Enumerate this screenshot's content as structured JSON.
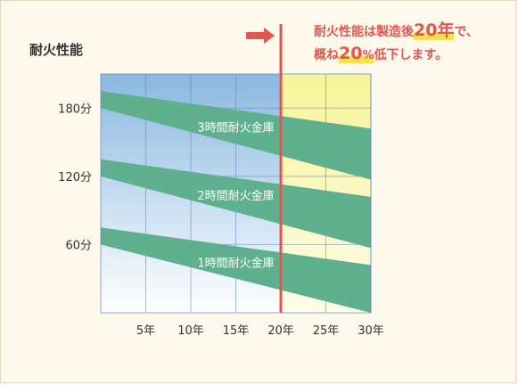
{
  "chart_data": {
    "type": "area",
    "ylabel": "耐火性能",
    "xlim": [
      0,
      30
    ],
    "ylim": [
      0,
      210
    ],
    "x_ticks": [
      {
        "value": 5,
        "label": "5年"
      },
      {
        "value": 10,
        "label": "10年"
      },
      {
        "value": 15,
        "label": "15年"
      },
      {
        "value": 20,
        "label": "20年"
      },
      {
        "value": 25,
        "label": "25年"
      },
      {
        "value": 30,
        "label": "30年"
      }
    ],
    "y_ticks": [
      {
        "value": 60,
        "label": "60分"
      },
      {
        "value": 120,
        "label": "120分"
      },
      {
        "value": 180,
        "label": "180分"
      }
    ],
    "series": [
      {
        "name": "3時間耐火金庫",
        "x": [
          0,
          30
        ],
        "upper": [
          195,
          162
        ],
        "lower": [
          180,
          117
        ]
      },
      {
        "name": "2時間耐火金庫",
        "x": [
          0,
          30
        ],
        "upper": [
          135,
          102
        ],
        "lower": [
          120,
          57
        ]
      },
      {
        "name": "1時間耐火金庫",
        "x": [
          0,
          30
        ],
        "upper": [
          75,
          42
        ],
        "lower": [
          60,
          0
        ]
      }
    ],
    "marker_x": 20,
    "annotation": {
      "line1_a": "耐火性能は製造後",
      "line1_b": "20年",
      "line1_c": "で、",
      "line2_a": "概ね",
      "line2_b": "20",
      "line2_c": "%",
      "line2_d": "低下します。"
    },
    "colors": {
      "band": "#5fb08f",
      "marker": "#e0574f",
      "sky_top": "#8ab8e0",
      "yellow_top": "#f7f39a",
      "yellow_bottom": "#fdfde8",
      "grid": "#5a86bf"
    }
  }
}
